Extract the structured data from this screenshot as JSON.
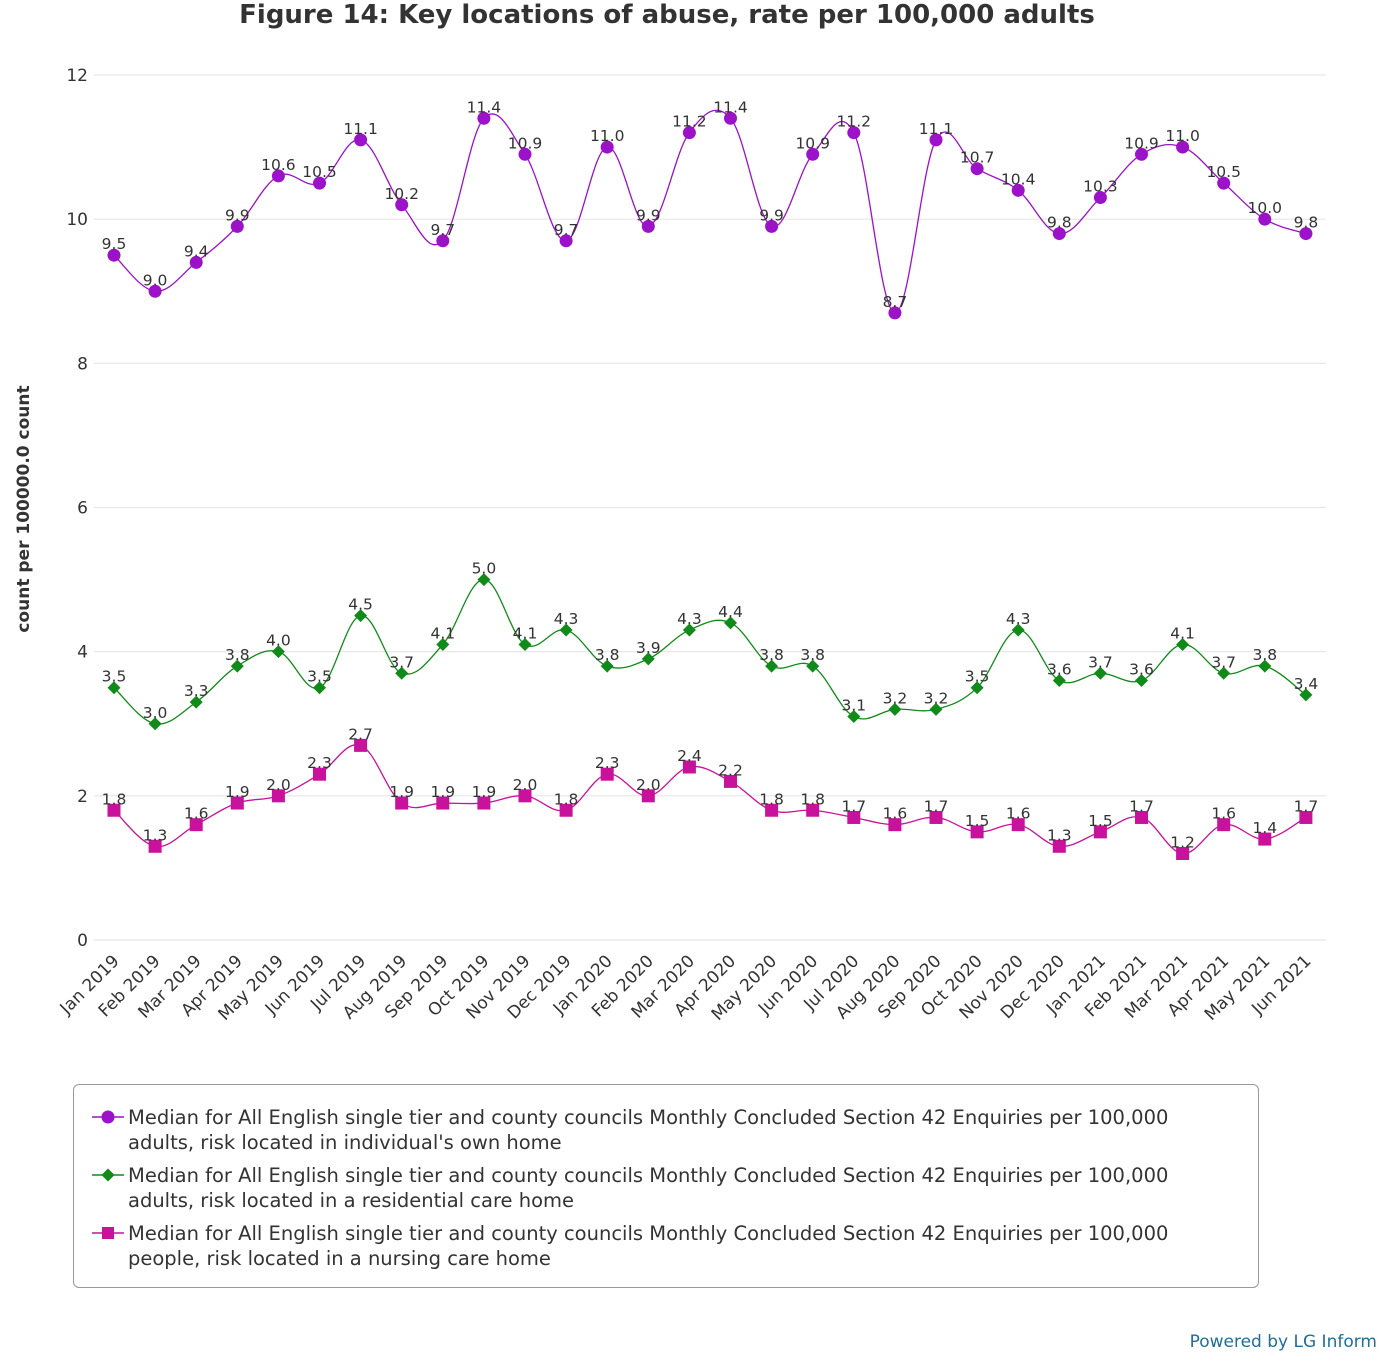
{
  "chart_data": {
    "type": "line",
    "title": "Figure 14: Key locations of abuse, rate per 100,000 adults",
    "ylabel": "count per 100000.0 count",
    "xlabel": "",
    "ylim": [
      0,
      12
    ],
    "yticks": [
      0,
      2,
      4,
      6,
      8,
      10,
      12
    ],
    "grid": true,
    "legend_position": "bottom",
    "categories": [
      "Jan 2019",
      "Feb 2019",
      "Mar 2019",
      "Apr 2019",
      "May 2019",
      "Jun 2019",
      "Jul 2019",
      "Aug 2019",
      "Sep 2019",
      "Oct 2019",
      "Nov 2019",
      "Dec 2019",
      "Jan 2020",
      "Feb 2020",
      "Mar 2020",
      "Apr 2020",
      "May 2020",
      "Jun 2020",
      "Jul 2020",
      "Aug 2020",
      "Sep 2020",
      "Oct 2020",
      "Nov 2020",
      "Dec 2020",
      "Jan 2021",
      "Feb 2021",
      "Mar 2021",
      "Apr 2021",
      "May 2021",
      "Jun 2021"
    ],
    "series": [
      {
        "name": "Median for All English single tier and county councils Monthly Concluded Section 42 Enquiries per 100,000 adults, risk located in individual's own home",
        "name_lines": [
          "Median for All English single tier and county councils Monthly Concluded Section 42 Enquiries per 100,000",
          "adults, risk located in individual's own home"
        ],
        "color": "#9b12c8",
        "marker": "circle",
        "values": [
          9.5,
          9.0,
          9.4,
          9.9,
          10.6,
          10.5,
          11.1,
          10.2,
          9.7,
          11.4,
          10.9,
          9.7,
          11.0,
          9.9,
          11.2,
          11.4,
          9.9,
          10.9,
          11.2,
          8.7,
          11.1,
          10.7,
          10.4,
          9.8,
          10.3,
          10.9,
          11.0,
          10.5,
          10.0,
          9.8
        ]
      },
      {
        "name": "Median for All English single tier and county councils Monthly Concluded Section 42 Enquiries per 100,000 adults, risk located in a residential care home",
        "name_lines": [
          "Median for All English single tier and county councils Monthly Concluded Section 42 Enquiries per 100,000",
          "adults, risk located in a residential care home"
        ],
        "color": "#108a18",
        "marker": "diamond",
        "values": [
          3.5,
          3.0,
          3.3,
          3.8,
          4.0,
          3.5,
          4.5,
          3.7,
          4.1,
          5.0,
          4.1,
          4.3,
          3.8,
          3.9,
          4.3,
          4.4,
          3.8,
          3.8,
          3.1,
          3.2,
          3.2,
          3.5,
          4.3,
          3.6,
          3.7,
          3.6,
          4.1,
          3.7,
          3.8,
          3.4
        ]
      },
      {
        "name": "Median for All English single tier and county councils Monthly Concluded Section 42 Enquiries per 100,000 people, risk located in a nursing care home",
        "name_lines": [
          "Median for All English single tier and county councils Monthly Concluded Section 42 Enquiries per 100,000",
          "people, risk located in a nursing care home"
        ],
        "color": "#c8129b",
        "marker": "square",
        "values": [
          1.8,
          1.3,
          1.6,
          1.9,
          2.0,
          2.3,
          2.7,
          1.9,
          1.9,
          1.9,
          2.0,
          1.8,
          2.3,
          2.0,
          2.4,
          2.2,
          1.8,
          1.8,
          1.7,
          1.6,
          1.7,
          1.5,
          1.6,
          1.3,
          1.5,
          1.7,
          1.2,
          1.6,
          1.4,
          1.7
        ]
      }
    ]
  },
  "footer": {
    "powered_by": "Powered by LG Inform"
  }
}
